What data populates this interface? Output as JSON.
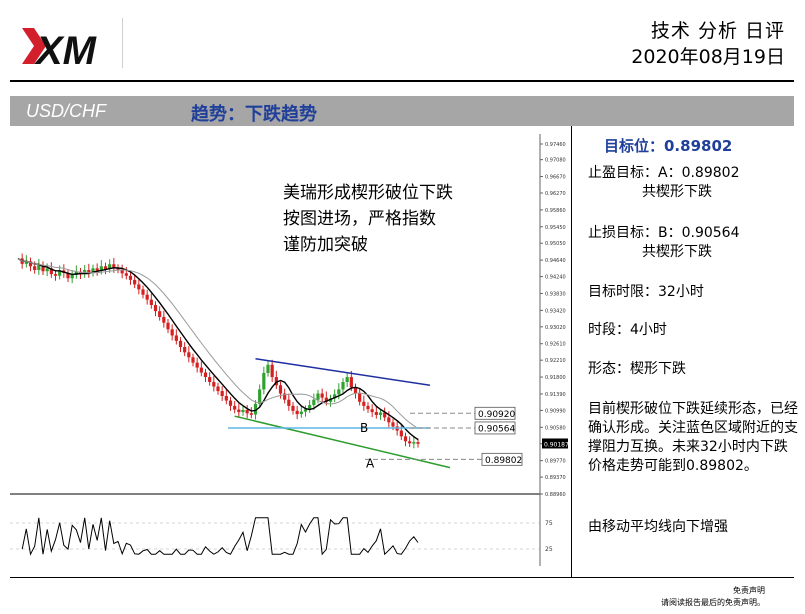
{
  "header": {
    "logo_text": "XM",
    "title": "技术 分析 日评",
    "date": "2020年08月19日"
  },
  "banner": {
    "pair": "USD/CHF",
    "trend": "趋势：下跌趋势"
  },
  "chart_data": {
    "type": "candlestick",
    "symbol": "USD/CHF",
    "timeframe": "4小时",
    "y_ticks": [
      "0.97460",
      "0.97080",
      "0.96670",
      "0.96270",
      "0.95860",
      "0.95450",
      "0.95050",
      "0.94640",
      "0.94240",
      "0.93830",
      "0.93420",
      "0.93020",
      "0.92610",
      "0.92210",
      "0.91800",
      "0.91390",
      "0.90990",
      "0.90580",
      "0.90180",
      "0.89770",
      "0.89370",
      "0.88960"
    ],
    "ylim": [
      0.8896,
      0.9746
    ],
    "current_price_label": "0.90187",
    "levels": [
      {
        "label": "0.90920",
        "value": 0.9092
      },
      {
        "label": "0.90564",
        "value": 0.90564
      },
      {
        "label": "0.89802",
        "value": 0.89802
      }
    ],
    "markers": [
      {
        "text": "B",
        "value": 0.90564
      },
      {
        "text": "A",
        "value": 0.89802
      }
    ],
    "annotation_lines": [
      "美瑞形成楔形破位下跌",
      "按图进场，严格指数",
      "谨防加突破"
    ],
    "oscillator_ticks": [
      "75",
      "25"
    ],
    "price_path": [
      0.9468,
      0.9455,
      0.9461,
      0.9449,
      0.944,
      0.9452,
      0.9437,
      0.9444,
      0.943,
      0.9426,
      0.9439,
      0.9433,
      0.942,
      0.9428,
      0.9436,
      0.943,
      0.944,
      0.9433,
      0.9444,
      0.9438,
      0.9449,
      0.9442,
      0.9454,
      0.9445,
      0.9441,
      0.9432,
      0.9426,
      0.9416,
      0.9405,
      0.9393,
      0.938,
      0.9368,
      0.9355,
      0.934,
      0.9326,
      0.9312,
      0.9296,
      0.9281,
      0.9268,
      0.9253,
      0.924,
      0.9228,
      0.9215,
      0.9203,
      0.9191,
      0.918,
      0.9168,
      0.9157,
      0.9146,
      0.9134,
      0.9123,
      0.911,
      0.9101,
      0.9095,
      0.91,
      0.9092,
      0.9089,
      0.9115,
      0.915,
      0.919,
      0.921,
      0.918,
      0.916,
      0.914,
      0.9125,
      0.911,
      0.9098,
      0.909,
      0.9096,
      0.9102,
      0.9112,
      0.9125,
      0.914,
      0.913,
      0.912,
      0.9128,
      0.9138,
      0.915,
      0.9168,
      0.918,
      0.9155,
      0.914,
      0.912,
      0.911,
      0.9102,
      0.9095,
      0.9088,
      0.9094,
      0.9082,
      0.907,
      0.906,
      0.905,
      0.9036,
      0.9024,
      0.9019,
      0.9022,
      0.9018
    ]
  },
  "side": {
    "target": "目标位：0.89802",
    "take_profit": "止盈目标：A：0.89802",
    "take_profit_note": "共楔形下跌",
    "stop_loss": "止损目标：B：0.90564",
    "stop_loss_note": "共楔形下跌",
    "time_limit": "目标时限：32小时",
    "timeframe": "时段：4小时",
    "pattern": "形态：楔形下跌",
    "description": "目前楔形破位下跌延续形态，已经确认形成。关注蓝色区域附近的支撑阻力互换。未来32小时内下跌价格走势可能到0.89802。",
    "ma_note": "由移动平均线向下增强"
  },
  "disclaimer": {
    "line1": "免责声明",
    "line2": "请阅读报告最后的免责声明。"
  },
  "colors": {
    "banner_bg": "#a6a6a6",
    "trend_text": "#1f3f9a",
    "bull": "#2fa12f",
    "bear": "#d42020",
    "ma": "#000000",
    "resistance_line": "#1f2fa0",
    "support_line": "#2c9c2c",
    "level_line": "#5fb7e6"
  }
}
